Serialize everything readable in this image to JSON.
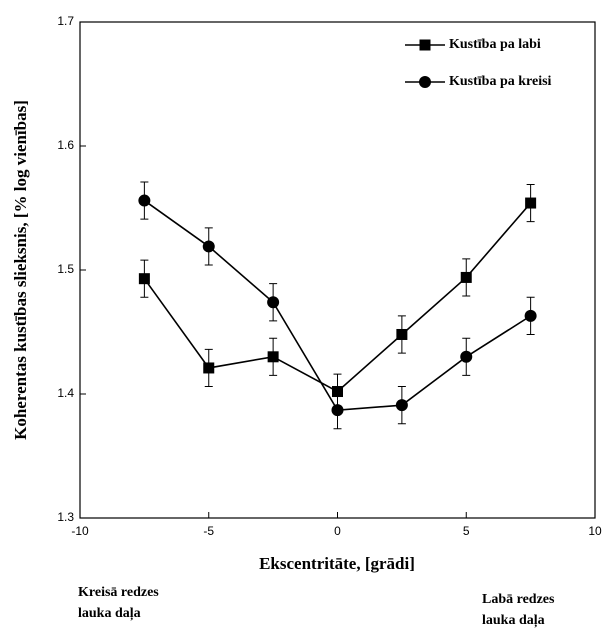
{
  "chart_data": {
    "type": "line",
    "xlabel": "Ekscentritāte, [grādi]",
    "ylabel": "Koherentas kustības slieksnis, [% log vienības]",
    "x": [
      -7.5,
      -5,
      -2.5,
      0,
      2.5,
      5,
      7.5
    ],
    "series": [
      {
        "name": "Kustība pa labi",
        "marker": "square",
        "color": "#000000",
        "values": [
          1.493,
          1.421,
          1.43,
          1.402,
          1.448,
          1.494,
          1.554
        ],
        "errors": [
          0.015,
          0.015,
          0.015,
          0.014,
          0.015,
          0.015,
          0.015
        ]
      },
      {
        "name": "Kustība pa kreisi",
        "marker": "circle",
        "color": "#000000",
        "values": [
          1.556,
          1.519,
          1.474,
          1.387,
          1.391,
          1.43,
          1.463
        ],
        "errors": [
          0.015,
          0.015,
          0.015,
          0.015,
          0.015,
          0.015,
          0.015
        ]
      }
    ],
    "xlim": [
      -10,
      10
    ],
    "xticks": [
      -10,
      -5,
      0,
      5,
      10
    ],
    "ylim": [
      1.3,
      1.7
    ],
    "yticks": [
      1.3,
      1.4,
      1.5,
      1.6,
      1.7
    ],
    "legend": "upper right",
    "annotations": [
      {
        "lines": [
          "Kreisā redzes",
          "lauka daļa"
        ]
      },
      {
        "lines": [
          "Labā redzes",
          "lauka daļa"
        ]
      }
    ]
  }
}
